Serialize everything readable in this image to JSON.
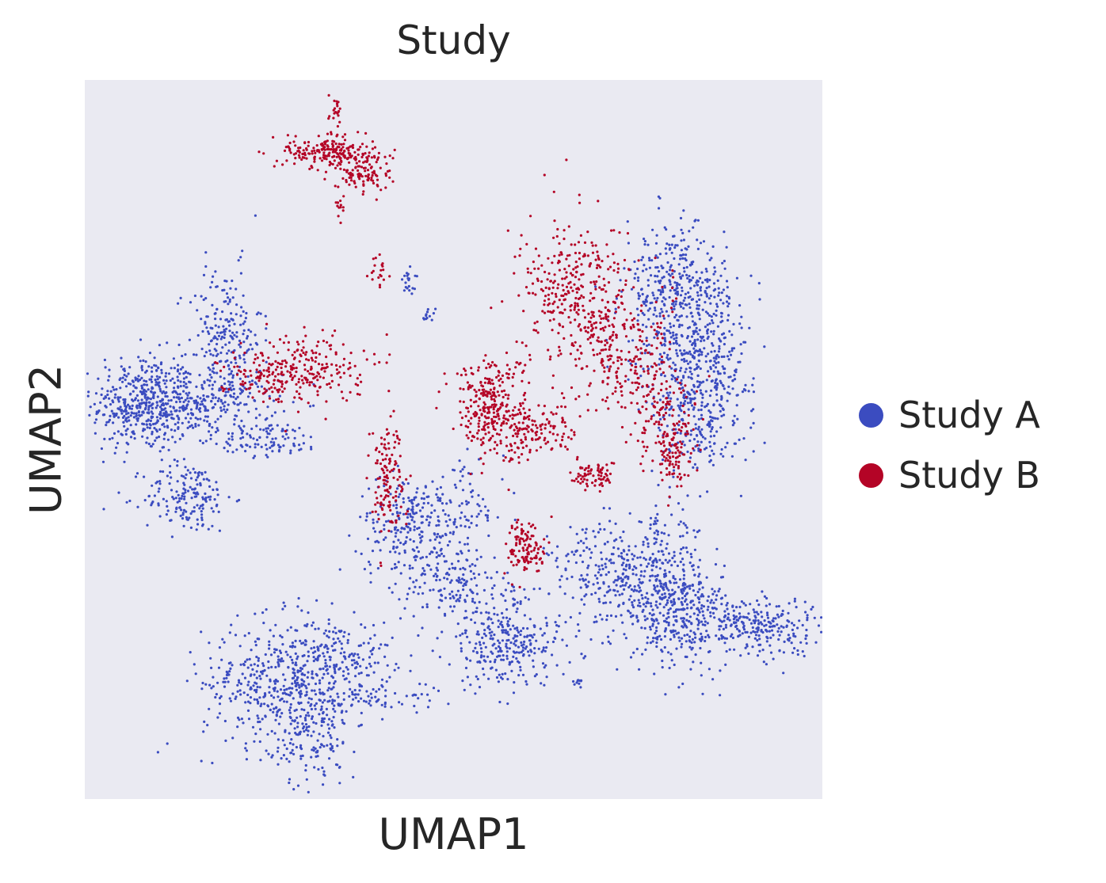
{
  "chart_data": {
    "type": "scatter",
    "title": "Study",
    "xlabel": "UMAP1",
    "ylabel": "UMAP2",
    "xlim": [
      0,
      1
    ],
    "ylim": [
      0,
      1
    ],
    "grid": false,
    "legend_position": "right",
    "series": [
      {
        "name": "Study A",
        "color": "#3b4cc0",
        "clusters": [
          {
            "cx": 0.08,
            "cy": 0.55,
            "sx": 0.035,
            "sy": 0.035,
            "n": 420
          },
          {
            "cx": 0.16,
            "cy": 0.55,
            "sx": 0.05,
            "sy": 0.02,
            "n": 260
          },
          {
            "cx": 0.19,
            "cy": 0.64,
            "sx": 0.025,
            "sy": 0.05,
            "n": 220
          },
          {
            "cx": 0.14,
            "cy": 0.42,
            "sx": 0.03,
            "sy": 0.025,
            "n": 170
          },
          {
            "cx": 0.25,
            "cy": 0.5,
            "sx": 0.035,
            "sy": 0.012,
            "n": 100
          },
          {
            "cx": 0.26,
            "cy": 0.16,
            "sx": 0.05,
            "sy": 0.045,
            "n": 420
          },
          {
            "cx": 0.34,
            "cy": 0.2,
            "sx": 0.04,
            "sy": 0.025,
            "n": 180
          },
          {
            "cx": 0.31,
            "cy": 0.09,
            "sx": 0.025,
            "sy": 0.04,
            "n": 150
          },
          {
            "cx": 0.4,
            "cy": 0.14,
            "sx": 0.04,
            "sy": 0.01,
            "n": 70
          },
          {
            "cx": 0.44,
            "cy": 0.38,
            "sx": 0.035,
            "sy": 0.035,
            "n": 230
          },
          {
            "cx": 0.5,
            "cy": 0.3,
            "sx": 0.035,
            "sy": 0.03,
            "n": 160
          },
          {
            "cx": 0.56,
            "cy": 0.22,
            "sx": 0.035,
            "sy": 0.035,
            "n": 200
          },
          {
            "cx": 0.6,
            "cy": 0.21,
            "sx": 0.035,
            "sy": 0.02,
            "n": 90
          },
          {
            "cx": 0.51,
            "cy": 0.41,
            "sx": 0.03,
            "sy": 0.03,
            "n": 80
          },
          {
            "cx": 0.44,
            "cy": 0.72,
            "sx": 0.006,
            "sy": 0.008,
            "n": 20
          },
          {
            "cx": 0.465,
            "cy": 0.67,
            "sx": 0.005,
            "sy": 0.006,
            "n": 12
          },
          {
            "cx": 0.67,
            "cy": 0.16,
            "sx": 0.004,
            "sy": 0.006,
            "n": 10
          },
          {
            "cx": 0.78,
            "cy": 0.3,
            "sx": 0.035,
            "sy": 0.045,
            "n": 320
          },
          {
            "cx": 0.82,
            "cy": 0.25,
            "sx": 0.04,
            "sy": 0.03,
            "n": 250
          },
          {
            "cx": 0.92,
            "cy": 0.24,
            "sx": 0.04,
            "sy": 0.02,
            "n": 220
          },
          {
            "cx": 0.71,
            "cy": 0.31,
            "sx": 0.04,
            "sy": 0.035,
            "n": 200
          },
          {
            "cx": 0.8,
            "cy": 0.7,
            "sx": 0.035,
            "sy": 0.05,
            "n": 380
          },
          {
            "cx": 0.84,
            "cy": 0.62,
            "sx": 0.035,
            "sy": 0.05,
            "n": 300
          },
          {
            "cx": 0.83,
            "cy": 0.53,
            "sx": 0.03,
            "sy": 0.04,
            "n": 200
          }
        ]
      },
      {
        "name": "Study B",
        "color": "#b40426",
        "clusters": [
          {
            "cx": 0.33,
            "cy": 0.9,
            "sx": 0.03,
            "sy": 0.01,
            "n": 190
          },
          {
            "cx": 0.38,
            "cy": 0.87,
            "sx": 0.02,
            "sy": 0.015,
            "n": 110
          },
          {
            "cx": 0.34,
            "cy": 0.94,
            "sx": 0.005,
            "sy": 0.025,
            "n": 30
          },
          {
            "cx": 0.345,
            "cy": 0.83,
            "sx": 0.004,
            "sy": 0.015,
            "n": 15
          },
          {
            "cx": 0.4,
            "cy": 0.73,
            "sx": 0.006,
            "sy": 0.012,
            "n": 20
          },
          {
            "cx": 0.3,
            "cy": 0.6,
            "sx": 0.04,
            "sy": 0.025,
            "n": 200
          },
          {
            "cx": 0.24,
            "cy": 0.59,
            "sx": 0.03,
            "sy": 0.015,
            "n": 90
          },
          {
            "cx": 0.41,
            "cy": 0.45,
            "sx": 0.012,
            "sy": 0.04,
            "n": 130
          },
          {
            "cx": 0.55,
            "cy": 0.55,
            "sx": 0.025,
            "sy": 0.035,
            "n": 260
          },
          {
            "cx": 0.6,
            "cy": 0.51,
            "sx": 0.035,
            "sy": 0.02,
            "n": 160
          },
          {
            "cx": 0.69,
            "cy": 0.45,
            "sx": 0.015,
            "sy": 0.01,
            "n": 70
          },
          {
            "cx": 0.6,
            "cy": 0.35,
            "sx": 0.014,
            "sy": 0.02,
            "n": 120
          },
          {
            "cx": 0.67,
            "cy": 0.7,
            "sx": 0.04,
            "sy": 0.05,
            "n": 360
          },
          {
            "cx": 0.74,
            "cy": 0.6,
            "sx": 0.035,
            "sy": 0.04,
            "n": 220
          },
          {
            "cx": 0.79,
            "cy": 0.52,
            "sx": 0.02,
            "sy": 0.035,
            "n": 110
          },
          {
            "cx": 0.8,
            "cy": 0.47,
            "sx": 0.01,
            "sy": 0.02,
            "n": 60
          }
        ]
      }
    ]
  }
}
